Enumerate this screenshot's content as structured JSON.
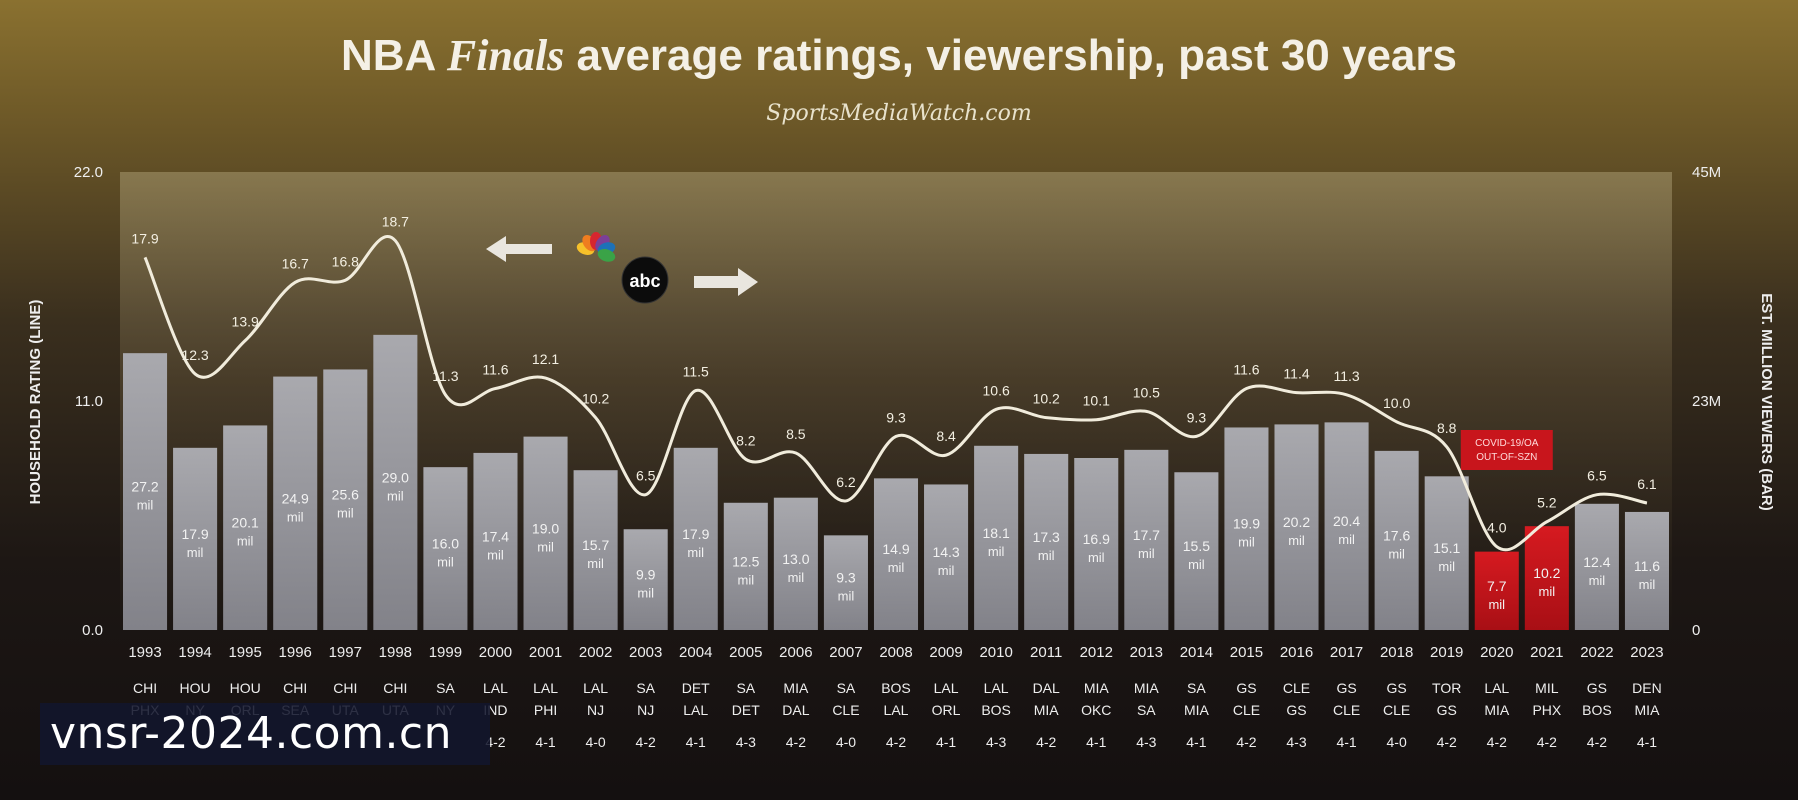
{
  "chart_data": {
    "type": "bar",
    "title_parts": {
      "pre": "NBA ",
      "script": "Finals",
      "post": " average ratings, viewership, past 30 years"
    },
    "subtitle": "SportsMediaWatch.com",
    "ylabel_left": "HOUSEHOLD RATING (LINE)",
    "ylabel_right": "EST. MILLION VIEWERS (BAR)",
    "left_ticks": [
      "22.0",
      "11.0",
      "0.0"
    ],
    "right_ticks": [
      "45M",
      "23M",
      "0"
    ],
    "left_ylim": [
      0,
      22
    ],
    "right_ylim": [
      0,
      45
    ],
    "categories": [
      "1993",
      "1994",
      "1995",
      "1996",
      "1997",
      "1998",
      "1999",
      "2000",
      "2001",
      "2002",
      "2003",
      "2004",
      "2005",
      "2006",
      "2007",
      "2008",
      "2009",
      "2010",
      "2011",
      "2012",
      "2013",
      "2014",
      "2015",
      "2016",
      "2017",
      "2018",
      "2019",
      "2020",
      "2021",
      "2022",
      "2023"
    ],
    "series": [
      {
        "name": "Viewers",
        "type": "bar",
        "values": [
          27.2,
          17.9,
          20.1,
          24.9,
          25.6,
          29.0,
          16.0,
          17.4,
          19.0,
          15.7,
          9.9,
          17.9,
          12.5,
          13.0,
          9.3,
          14.9,
          14.3,
          18.1,
          17.3,
          16.9,
          17.7,
          15.5,
          19.9,
          20.2,
          20.4,
          17.6,
          15.1,
          7.7,
          10.2,
          12.4,
          11.6
        ],
        "labels": [
          "27.2",
          "17.9",
          "20.1",
          "24.9",
          "25.6",
          "29.0",
          "16.0",
          "17.4",
          "19.0",
          "15.7",
          "9.9",
          "17.9",
          "12.5",
          "13.0",
          "9.3",
          "14.9",
          "14.3",
          "18.1",
          "17.3",
          "16.9",
          "17.7",
          "15.5",
          "19.9",
          "20.2",
          "20.4",
          "17.6",
          "15.1",
          "7.7",
          "10.2",
          "12.4",
          "11.6"
        ],
        "unit": "mil"
      },
      {
        "name": "Rating",
        "type": "line",
        "values": [
          17.9,
          12.3,
          13.9,
          16.7,
          16.8,
          18.7,
          11.3,
          11.6,
          12.1,
          10.2,
          6.5,
          11.5,
          8.2,
          8.5,
          6.2,
          9.3,
          8.4,
          10.6,
          10.2,
          10.1,
          10.5,
          9.3,
          11.6,
          11.4,
          11.3,
          10.0,
          8.8,
          4.0,
          5.2,
          6.5,
          6.1
        ]
      }
    ],
    "matchups_top": [
      "CHI",
      "HOU",
      "HOU",
      "CHI",
      "CHI",
      "CHI",
      "SA",
      "LAL",
      "LAL",
      "LAL",
      "SA",
      "DET",
      "SA",
      "MIA",
      "SA",
      "BOS",
      "LAL",
      "LAL",
      "DAL",
      "MIA",
      "MIA",
      "SA",
      "GS",
      "CLE",
      "GS",
      "GS",
      "TOR",
      "LAL",
      "MIL",
      "GS",
      "DEN"
    ],
    "matchups_bottom": [
      "PHX",
      "NY",
      "ORL",
      "SEA",
      "UTA",
      "UTA",
      "NY",
      "IND",
      "PHI",
      "NJ",
      "NJ",
      "LAL",
      "DET",
      "DAL",
      "CLE",
      "LAL",
      "ORL",
      "BOS",
      "MIA",
      "OKC",
      "SA",
      "MIA",
      "CLE",
      "GS",
      "CLE",
      "CLE",
      "GS",
      "MIA",
      "PHX",
      "BOS",
      "MIA"
    ],
    "results": [
      "",
      "",
      "",
      "",
      "",
      "",
      "",
      "4-2",
      "4-1",
      "4-0",
      "4-2",
      "4-1",
      "4-3",
      "4-2",
      "4-0",
      "4-2",
      "4-1",
      "4-3",
      "4-2",
      "4-1",
      "4-3",
      "4-1",
      "4-2",
      "4-3",
      "4-1",
      "4-0",
      "4-2",
      "4-2",
      "4-2",
      "4-2",
      "4-1"
    ],
    "highlight_years": [
      "2020",
      "2021"
    ],
    "highlight_note": [
      "COVID-19/OA",
      "OUT-OF-SZN"
    ],
    "network_labels": [
      "nbc",
      "abc"
    ],
    "colors": {
      "bar": "#9c9ca2",
      "bar_highlight": "#c8151c",
      "line": "#f1ecdc",
      "text": "#eeeeee",
      "title": "#f4f0e6"
    }
  },
  "watermark": "vnsr-2024.com.cn"
}
